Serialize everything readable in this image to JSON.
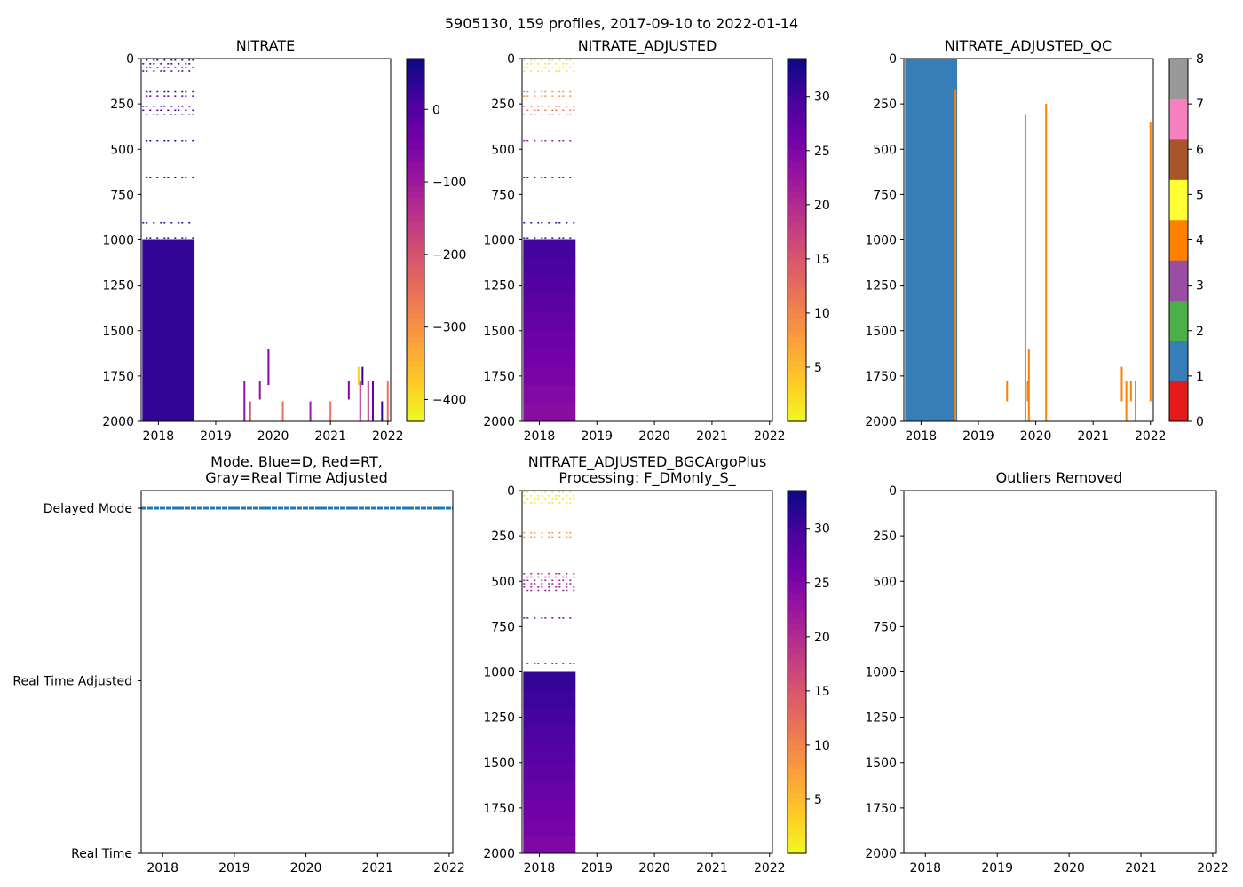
{
  "figure": {
    "suptitle": "5905130, 159 profiles, 2017-09-10 to 2022-01-14"
  },
  "colors": {
    "plasma": [
      "#0d0887",
      "#46039f",
      "#7201a8",
      "#9c179e",
      "#bd3786",
      "#d8576b",
      "#ed7953",
      "#fb9f3a",
      "#fdca26",
      "#f0f921"
    ],
    "qc": [
      "#e41a1c",
      "#377eb8",
      "#4daf4a",
      "#984ea3",
      "#ff7f00",
      "#ffff33",
      "#a65628",
      "#f781bf",
      "#999999"
    ],
    "mode_line": "#1f77b4"
  },
  "chart_data": [
    {
      "id": "nitrate",
      "type": "heatmap",
      "title": "NITRATE",
      "x_ticks": [
        "2018",
        "2019",
        "2020",
        "2021",
        "2022"
      ],
      "xlim": [
        2017.7,
        2022.05
      ],
      "y_ticks": [
        "0",
        "250",
        "500",
        "750",
        "1000",
        "1250",
        "1500",
        "1750",
        "2000"
      ],
      "ylim": [
        2000,
        0
      ],
      "colorbar": {
        "cmap": "plasma_r",
        "range": [
          -430,
          70
        ],
        "ticks": [
          0,
          -100,
          -200,
          -300,
          -400
        ],
        "tick_labels": [
          "0",
          "−100",
          "−200",
          "−300",
          "−400"
        ]
      },
      "block": {
        "x": [
          2017.72,
          2018.63
        ],
        "y": [
          1000,
          2000
        ],
        "value": 35
      },
      "sparse_rows": [
        {
          "y": [
            0,
            80
          ],
          "x": [
            2017.72,
            2018.63
          ],
          "value": 20
        },
        {
          "y": [
            175,
            220
          ],
          "x": [
            2017.72,
            2018.63
          ],
          "value": 15
        },
        {
          "y": [
            255,
            320
          ],
          "x": [
            2017.72,
            2018.63
          ],
          "value": 30
        },
        {
          "y": [
            445,
            450
          ],
          "x": [
            2017.72,
            2018.63
          ],
          "value": 40
        },
        {
          "y": [
            648,
            652
          ],
          "x": [
            2017.72,
            2018.63
          ],
          "value": 45
        },
        {
          "y": [
            895,
            900
          ],
          "x": [
            2017.72,
            2018.63
          ],
          "value": 40
        },
        {
          "y": [
            980,
            1000
          ],
          "x": [
            2017.72,
            2018.63
          ],
          "value": 40
        }
      ],
      "bars": [
        {
          "x": 2019.5,
          "y": [
            1780,
            2000
          ],
          "value": -80
        },
        {
          "x": 2019.6,
          "y": [
            1890,
            2000
          ],
          "value": -200
        },
        {
          "x": 2019.77,
          "y": [
            1780,
            1880
          ],
          "value": -80
        },
        {
          "x": 2019.92,
          "y": [
            1600,
            1800
          ],
          "value": -60
        },
        {
          "x": 2020.17,
          "y": [
            1890,
            2000
          ],
          "value": -250
        },
        {
          "x": 2020.65,
          "y": [
            1890,
            2000
          ],
          "value": -100
        },
        {
          "x": 2021.0,
          "y": [
            1890,
            2000
          ],
          "value": -260
        },
        {
          "x": 2021.32,
          "y": [
            1780,
            1880
          ],
          "value": -60
        },
        {
          "x": 2021.49,
          "y": [
            1700,
            1800
          ],
          "value": -380
        },
        {
          "x": 2021.52,
          "y": [
            1780,
            2000
          ],
          "value": -120
        },
        {
          "x": 2021.56,
          "y": [
            1700,
            1800
          ],
          "value": 40
        },
        {
          "x": 2021.66,
          "y": [
            1780,
            2000
          ],
          "value": -150
        },
        {
          "x": 2021.74,
          "y": [
            1780,
            2000
          ],
          "value": -20
        },
        {
          "x": 2021.9,
          "y": [
            1890,
            2000
          ],
          "value": 30
        },
        {
          "x": 2022.0,
          "y": [
            1780,
            2000
          ],
          "value": -250
        }
      ]
    },
    {
      "id": "nitrate_adjusted",
      "type": "heatmap",
      "title": "NITRATE_ADJUSTED",
      "x_ticks": [
        "2018",
        "2019",
        "2020",
        "2021",
        "2022"
      ],
      "xlim": [
        2017.7,
        2022.05
      ],
      "y_ticks": [
        "0",
        "250",
        "500",
        "750",
        "1000",
        "1250",
        "1500",
        "1750",
        "2000"
      ],
      "ylim": [
        2000,
        0
      ],
      "colorbar": {
        "cmap": "plasma_r",
        "range": [
          0,
          33.5
        ],
        "ticks": [
          5,
          10,
          15,
          20,
          25,
          30
        ],
        "tick_labels": [
          "5",
          "10",
          "15",
          "20",
          "25",
          "30"
        ]
      },
      "block": {
        "x": [
          2017.72,
          2018.63
        ],
        "y": [
          1000,
          2000
        ],
        "value_top": 30,
        "value_bottom": 24
      },
      "sparse_rows": [
        {
          "y": [
            0,
            80
          ],
          "x": [
            2017.72,
            2018.63
          ],
          "value": 2
        },
        {
          "y": [
            175,
            220
          ],
          "x": [
            2017.72,
            2018.63
          ],
          "value": 9
        },
        {
          "y": [
            255,
            320
          ],
          "x": [
            2017.72,
            2018.63
          ],
          "value": 12
        },
        {
          "y": [
            445,
            450
          ],
          "x": [
            2017.72,
            2018.63
          ],
          "value": 22
        },
        {
          "y": [
            648,
            652
          ],
          "x": [
            2017.72,
            2018.63
          ],
          "value": 26
        },
        {
          "y": [
            895,
            900
          ],
          "x": [
            2017.72,
            2018.63
          ],
          "value": 30
        },
        {
          "y": [
            980,
            1000
          ],
          "x": [
            2017.72,
            2018.63
          ],
          "value": 30
        }
      ]
    },
    {
      "id": "nitrate_adjusted_qc",
      "type": "heatmap",
      "title": "NITRATE_ADJUSTED_QC",
      "x_ticks": [
        "2018",
        "2019",
        "2020",
        "2021",
        "2022"
      ],
      "xlim": [
        2017.7,
        2022.05
      ],
      "y_ticks": [
        "0",
        "250",
        "500",
        "750",
        "1000",
        "1250",
        "1500",
        "1750",
        "2000"
      ],
      "ylim": [
        2000,
        0
      ],
      "colorbar": {
        "cmap": "qc",
        "range": [
          0,
          8
        ],
        "ticks": [
          0,
          1,
          2,
          3,
          4,
          5,
          6,
          7,
          8
        ],
        "tick_labels": [
          "0",
          "1",
          "2",
          "3",
          "4",
          "5",
          "6",
          "7",
          "8"
        ]
      },
      "block": {
        "x": [
          2017.72,
          2018.63
        ],
        "y": [
          0,
          2000
        ],
        "value": 1
      },
      "bars": [
        {
          "x": 2018.6,
          "y": [
            170,
            2000
          ],
          "value": 4
        },
        {
          "x": 2019.5,
          "y": [
            1780,
            1890
          ],
          "value": 4
        },
        {
          "x": 2019.82,
          "y": [
            310,
            2000
          ],
          "value": 4
        },
        {
          "x": 2019.86,
          "y": [
            1780,
            1890
          ],
          "value": 4
        },
        {
          "x": 2019.88,
          "y": [
            1600,
            2000
          ],
          "value": 4
        },
        {
          "x": 2020.18,
          "y": [
            250,
            2000
          ],
          "value": 4
        },
        {
          "x": 2021.5,
          "y": [
            1700,
            1890
          ],
          "value": 4
        },
        {
          "x": 2021.58,
          "y": [
            1780,
            2000
          ],
          "value": 4
        },
        {
          "x": 2021.66,
          "y": [
            1780,
            1890
          ],
          "value": 4
        },
        {
          "x": 2021.74,
          "y": [
            1780,
            2000
          ],
          "value": 4
        },
        {
          "x": 2022.0,
          "y": [
            350,
            1890
          ],
          "value": 4
        }
      ]
    },
    {
      "id": "mode",
      "type": "line",
      "title_lines": [
        "Mode. Blue=D, Red=RT,",
        "Gray=Real Time Adjusted"
      ],
      "x_ticks": [
        "2018",
        "2019",
        "2020",
        "2021",
        "2022"
      ],
      "xlim": [
        2017.7,
        2022.05
      ],
      "y_categories": [
        "Delayed Mode",
        "Real Time Adjusted",
        "Real Time"
      ],
      "series": [
        {
          "name": "Delayed Mode",
          "x": [
            2017.7,
            2022.05
          ],
          "y": "Delayed Mode"
        }
      ]
    },
    {
      "id": "bgc_plus",
      "type": "heatmap",
      "title_lines": [
        "NITRATE_ADJUSTED_BGCArgoPlus",
        "Processing: F_DMonly_S_"
      ],
      "x_ticks": [
        "2018",
        "2019",
        "2020",
        "2021",
        "2022"
      ],
      "xlim": [
        2017.7,
        2022.05
      ],
      "y_ticks": [
        "0",
        "250",
        "500",
        "750",
        "1000",
        "1250",
        "1500",
        "1750",
        "2000"
      ],
      "ylim": [
        2000,
        0
      ],
      "colorbar": {
        "cmap": "plasma_r",
        "range": [
          0,
          33.5
        ],
        "ticks": [
          5,
          10,
          15,
          20,
          25,
          30
        ],
        "tick_labels": [
          "5",
          "10",
          "15",
          "20",
          "25",
          "30"
        ]
      },
      "block": {
        "x": [
          2017.72,
          2018.63
        ],
        "y": [
          1000,
          2000
        ],
        "value_top": 31,
        "value_bottom": 25
      },
      "sparse_rows": [
        {
          "y": [
            0,
            80
          ],
          "x": [
            2017.72,
            2018.63
          ],
          "value": 2
        },
        {
          "y": [
            225,
            270
          ],
          "x": [
            2017.72,
            2018.63
          ],
          "value": 9
        },
        {
          "y": [
            450,
            560
          ],
          "x": [
            2017.72,
            2018.63
          ],
          "value": 22
        },
        {
          "y": [
            695,
            700
          ],
          "x": [
            2017.72,
            2018.63
          ],
          "value": 26
        },
        {
          "y": [
            945,
            950
          ],
          "x": [
            2017.72,
            2018.63
          ],
          "value": 30
        }
      ]
    },
    {
      "id": "outliers",
      "type": "scatter",
      "title": "Outliers Removed",
      "x_ticks": [
        "2018",
        "2019",
        "2020",
        "2021",
        "2022"
      ],
      "xlim": [
        2017.7,
        2022.05
      ],
      "y_ticks": [
        "0",
        "250",
        "500",
        "750",
        "1000",
        "1250",
        "1500",
        "1750",
        "2000"
      ],
      "ylim": [
        2000,
        0
      ],
      "points": []
    }
  ]
}
